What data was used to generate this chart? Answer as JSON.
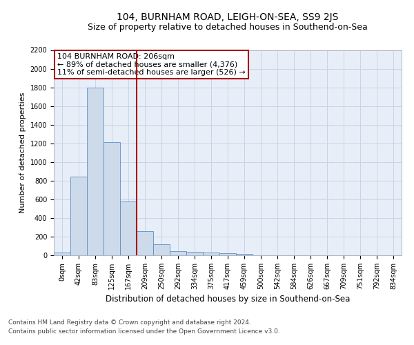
{
  "title": "104, BURNHAM ROAD, LEIGH-ON-SEA, SS9 2JS",
  "subtitle": "Size of property relative to detached houses in Southend-on-Sea",
  "xlabel": "Distribution of detached houses by size in Southend-on-Sea",
  "ylabel": "Number of detached properties",
  "bar_labels": [
    "0sqm",
    "42sqm",
    "83sqm",
    "125sqm",
    "167sqm",
    "209sqm",
    "250sqm",
    "292sqm",
    "334sqm",
    "375sqm",
    "417sqm",
    "459sqm",
    "500sqm",
    "542sqm",
    "584sqm",
    "626sqm",
    "667sqm",
    "709sqm",
    "751sqm",
    "792sqm",
    "834sqm"
  ],
  "bar_values": [
    28,
    840,
    1800,
    1210,
    580,
    258,
    115,
    48,
    38,
    30,
    22,
    18,
    0,
    0,
    0,
    0,
    0,
    0,
    0,
    0,
    0
  ],
  "bar_color": "#ccdaea",
  "bar_edge_color": "#5b8dc8",
  "vline_color": "#aa0000",
  "vline_x_idx": 4.5,
  "annotation_text": "104 BURNHAM ROAD: 206sqm\n← 89% of detached houses are smaller (4,376)\n11% of semi-detached houses are larger (526) →",
  "annotation_box_color": "white",
  "annotation_box_edge_color": "#aa0000",
  "ylim": [
    0,
    2200
  ],
  "yticks": [
    0,
    200,
    400,
    600,
    800,
    1000,
    1200,
    1400,
    1600,
    1800,
    2000,
    2200
  ],
  "grid_color": "#c8d4e8",
  "bg_color": "#e8eef8",
  "footer_line1": "Contains HM Land Registry data © Crown copyright and database right 2024.",
  "footer_line2": "Contains public sector information licensed under the Open Government Licence v3.0.",
  "title_fontsize": 10,
  "subtitle_fontsize": 9,
  "ylabel_fontsize": 8,
  "xlabel_fontsize": 8.5,
  "annotation_fontsize": 8,
  "tick_fontsize": 7,
  "footer_fontsize": 6.5
}
